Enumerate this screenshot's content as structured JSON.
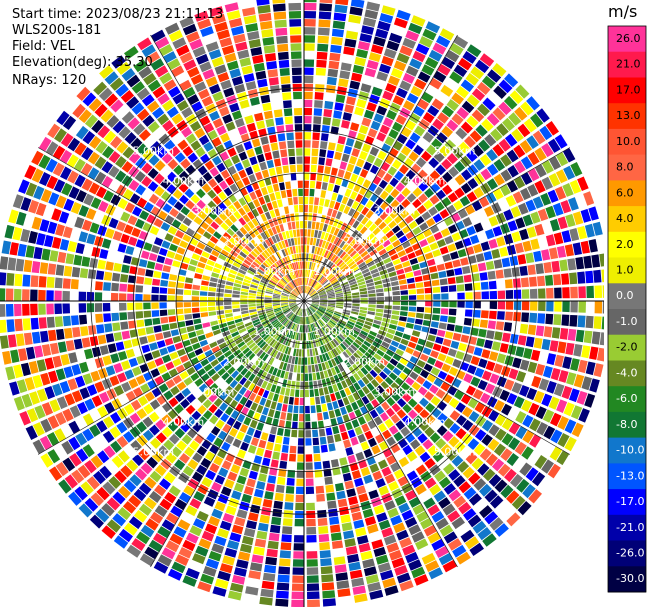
{
  "header": {
    "start_time": "Start time: 2023/08/23 21:11:13",
    "instrument": "WLS200s-181",
    "field": "Field: VEL",
    "elevation": "Elevation(deg): 35.30",
    "nrays": "NRays: 120"
  },
  "chart_data": {
    "type": "heatmap",
    "projection": "polar-ppi",
    "field": "VEL",
    "units": "m/s",
    "n_rays": 120,
    "ring_labels_km": [
      "1.00km",
      "2.00km",
      "3.00km",
      "4.00km",
      "5.00km"
    ],
    "max_range_km": 7.2,
    "colorbar": {
      "title": "m/s",
      "ticks": [
        "26.0",
        "21.0",
        "17.0",
        "13.0",
        "10.0",
        "8.0",
        "6.0",
        "4.0",
        "2.0",
        "1.0",
        "0.0",
        "-1.0",
        "-2.0",
        "-4.0",
        "-6.0",
        "-8.0",
        "-10.0",
        "-13.0",
        "-17.0",
        "-21.0",
        "-26.0",
        "-30.0"
      ],
      "colors": [
        "#ff3399",
        "#ff1a4d",
        "#ff0000",
        "#ff3300",
        "#ff5533",
        "#ff6644",
        "#ff9900",
        "#ffcc00",
        "#ffff00",
        "#eeee00",
        "#777777",
        "#666666",
        "#99cc33",
        "#668822",
        "#228822",
        "#117733",
        "#1177cc",
        "#0055ff",
        "#0000ff",
        "#0000aa",
        "#000077",
        "#000044"
      ]
    }
  }
}
